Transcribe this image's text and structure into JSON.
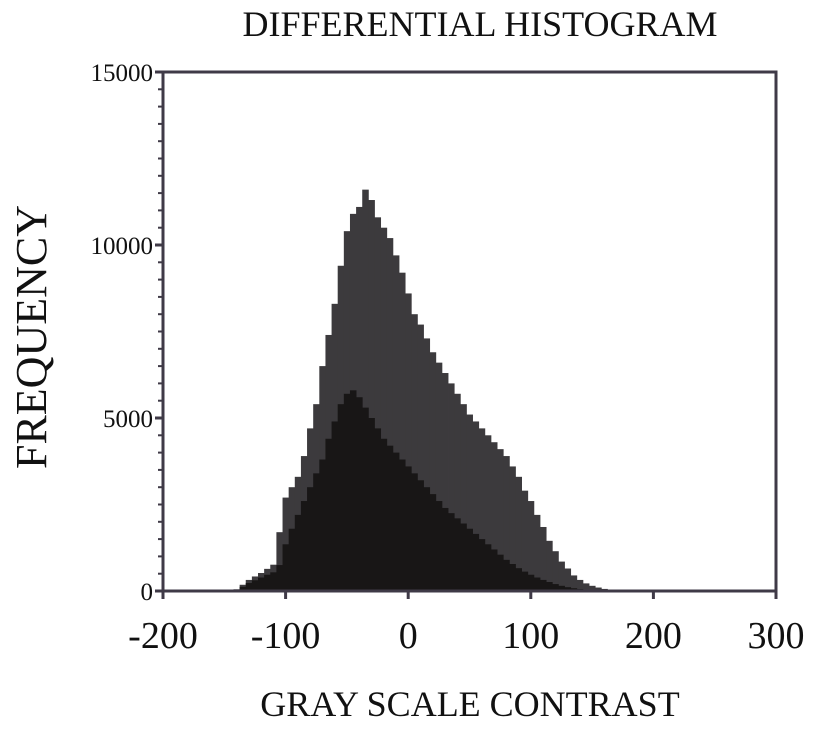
{
  "chart_data": {
    "type": "bar",
    "title": "DIFFERENTIAL HISTOGRAM",
    "xlabel": "GRAY SCALE CONTRAST",
    "ylabel": "FREQUENCY",
    "xlim": [
      -200,
      300
    ],
    "ylim": [
      0,
      15000
    ],
    "x_ticks": [
      "-200",
      "-100",
      "0",
      "100",
      "200",
      "300"
    ],
    "y_ticks": [
      "0",
      "5000",
      "10000",
      "15000"
    ],
    "grid": false,
    "colors": {
      "outer": "#3c3a3d",
      "inner": "#181616",
      "frame": "#3f3a47"
    },
    "x": [
      -140,
      -135,
      -130,
      -125,
      -120,
      -115,
      -110,
      -105,
      -100,
      -95,
      -90,
      -85,
      -80,
      -75,
      -70,
      -65,
      -60,
      -55,
      -50,
      -45,
      -40,
      -35,
      -30,
      -25,
      -20,
      -15,
      -10,
      -5,
      0,
      5,
      10,
      15,
      20,
      25,
      30,
      35,
      40,
      45,
      50,
      55,
      60,
      65,
      70,
      75,
      80,
      85,
      90,
      95,
      100,
      105,
      110,
      115,
      120,
      125,
      130,
      135,
      140,
      145,
      150,
      155,
      160,
      165,
      170,
      175,
      180,
      185,
      190,
      195,
      200,
      205,
      210,
      215,
      220
    ],
    "series": [
      {
        "values": [
          50,
          180,
          320,
          420,
          520,
          640,
          760,
          1700,
          2700,
          3000,
          3300,
          3900,
          4700,
          5400,
          6500,
          7400,
          8300,
          9400,
          10400,
          10900,
          11100,
          11600,
          11300,
          10800,
          10500,
          10200,
          9700,
          9200,
          8600,
          8000,
          7700,
          7300,
          6900,
          6600,
          6300,
          6000,
          5700,
          5400,
          5100,
          4900,
          4700,
          4500,
          4300,
          4100,
          3900,
          3600,
          3300,
          2900,
          2600,
          2200,
          1850,
          1450,
          1150,
          850,
          650,
          450,
          320,
          220,
          150,
          100,
          60,
          40,
          25,
          15,
          10,
          5,
          5,
          0,
          0,
          0,
          0,
          0,
          0
        ]
      },
      {
        "values": [
          30,
          120,
          230,
          310,
          390,
          470,
          540,
          750,
          1350,
          1800,
          2200,
          2600,
          3000,
          3400,
          3800,
          4400,
          4900,
          5400,
          5700,
          5800,
          5600,
          5300,
          5000,
          4700,
          4400,
          4200,
          4000,
          3800,
          3600,
          3400,
          3200,
          3000,
          2800,
          2600,
          2400,
          2250,
          2100,
          1950,
          1800,
          1650,
          1500,
          1350,
          1200,
          1050,
          900,
          780,
          660,
          560,
          470,
          390,
          320,
          260,
          200,
          150,
          110,
          80,
          55,
          40,
          25,
          15,
          10,
          5,
          0,
          0,
          0,
          0,
          0,
          0,
          0,
          0,
          0,
          0,
          0
        ]
      }
    ]
  }
}
